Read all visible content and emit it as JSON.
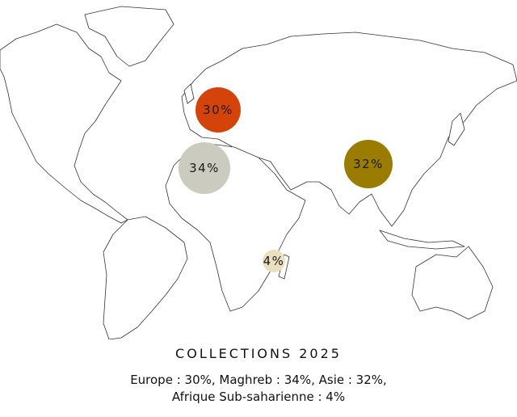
{
  "title": "COLLECTIONS 2025",
  "caption": {
    "line1": "Europe : 30%, Maghreb : 34%, Asie : 32%,",
    "line2": "Afrique Sub-saharienne : 4%"
  },
  "regions": [
    {
      "name": "Europe",
      "label": "30%",
      "value": 30,
      "color": "#d4430a"
    },
    {
      "name": "Maghreb",
      "label": "34%",
      "value": 34,
      "color": "#cbcbc0"
    },
    {
      "name": "Asie",
      "label": "32%",
      "value": 32,
      "color": "#9a7d00"
    },
    {
      "name": "Afrique Sub-saharienne",
      "label": "4%",
      "value": 4,
      "color": "#ecdfc0"
    }
  ]
}
